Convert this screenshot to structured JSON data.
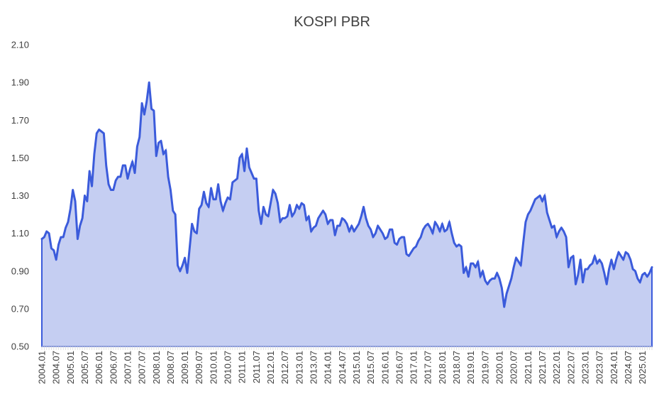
{
  "chart_data": {
    "type": "area",
    "title": "KOSPI PBR",
    "xlabel": "",
    "ylabel": "",
    "ylim": [
      0.5,
      2.1
    ],
    "y_ticks": [
      "0.50",
      "0.70",
      "0.90",
      "1.10",
      "1.30",
      "1.50",
      "1.70",
      "1.90",
      "2.10"
    ],
    "x_ticks": [
      "2004.01",
      "2004.07",
      "2005.01",
      "2005.07",
      "2006.01",
      "2006.07",
      "2007.01",
      "2007.07",
      "2008.01",
      "2008.07",
      "2009.01",
      "2009.07",
      "2010.01",
      "2010.07",
      "2011.01",
      "2011.07",
      "2012.01",
      "2012.07",
      "2013.01",
      "2013.07",
      "2014.01",
      "2014.07",
      "2015.01",
      "2015.07",
      "2016.01",
      "2016.07",
      "2017.01",
      "2017.07",
      "2018.01",
      "2018.07",
      "2019.01",
      "2019.07",
      "2020.01",
      "2020.07",
      "2021.01",
      "2021.07",
      "2022.01",
      "2022.07",
      "2023.01",
      "2023.07",
      "2024.01",
      "2024.07",
      "2025.01"
    ],
    "grid": false,
    "legend": "none",
    "colors": {
      "line": "#3B5BDB",
      "fill": "#C5CEF2",
      "axis": "#D9D9D9"
    },
    "series": [
      {
        "x_start": "2004.01",
        "interval": "month",
        "values": [
          1.07,
          1.08,
          1.11,
          1.1,
          1.02,
          1.01,
          0.96,
          1.04,
          1.08,
          1.08,
          1.13,
          1.16,
          1.23,
          1.33,
          1.27,
          1.07,
          1.14,
          1.18,
          1.3,
          1.27,
          1.43,
          1.35,
          1.52,
          1.63,
          1.65,
          1.64,
          1.63,
          1.46,
          1.36,
          1.33,
          1.33,
          1.38,
          1.4,
          1.4,
          1.46,
          1.46,
          1.39,
          1.44,
          1.48,
          1.42,
          1.56,
          1.61,
          1.79,
          1.73,
          1.8,
          1.9,
          1.76,
          1.75,
          1.51,
          1.58,
          1.59,
          1.52,
          1.54,
          1.4,
          1.33,
          1.22,
          1.2,
          0.93,
          0.9,
          0.93,
          0.97,
          0.89,
          1.02,
          1.15,
          1.11,
          1.1,
          1.23,
          1.25,
          1.32,
          1.26,
          1.24,
          1.34,
          1.28,
          1.28,
          1.36,
          1.27,
          1.22,
          1.26,
          1.29,
          1.28,
          1.37,
          1.38,
          1.39,
          1.5,
          1.52,
          1.43,
          1.55,
          1.45,
          1.42,
          1.39,
          1.39,
          1.22,
          1.15,
          1.24,
          1.2,
          1.19,
          1.26,
          1.33,
          1.31,
          1.26,
          1.16,
          1.18,
          1.18,
          1.19,
          1.25,
          1.19,
          1.21,
          1.25,
          1.23,
          1.26,
          1.25,
          1.17,
          1.19,
          1.11,
          1.13,
          1.14,
          1.18,
          1.2,
          1.22,
          1.2,
          1.15,
          1.17,
          1.17,
          1.09,
          1.14,
          1.14,
          1.18,
          1.17,
          1.15,
          1.11,
          1.14,
          1.11,
          1.13,
          1.15,
          1.19,
          1.24,
          1.18,
          1.14,
          1.12,
          1.08,
          1.1,
          1.14,
          1.12,
          1.1,
          1.07,
          1.08,
          1.12,
          1.12,
          1.05,
          1.04,
          1.07,
          1.08,
          1.08,
          0.99,
          0.98,
          1.0,
          1.02,
          1.03,
          1.06,
          1.08,
          1.12,
          1.14,
          1.15,
          1.13,
          1.1,
          1.16,
          1.14,
          1.11,
          1.15,
          1.11,
          1.12,
          1.16,
          1.1,
          1.05,
          1.03,
          1.04,
          1.03,
          0.89,
          0.92,
          0.87,
          0.94,
          0.94,
          0.92,
          0.95,
          0.87,
          0.9,
          0.85,
          0.83,
          0.85,
          0.86,
          0.86,
          0.89,
          0.86,
          0.81,
          0.71,
          0.78,
          0.82,
          0.86,
          0.92,
          0.97,
          0.95,
          0.93,
          1.05,
          1.16,
          1.2,
          1.22,
          1.25,
          1.28,
          1.29,
          1.3,
          1.27,
          1.3,
          1.21,
          1.17,
          1.13,
          1.14,
          1.08,
          1.11,
          1.13,
          1.11,
          1.08,
          0.92,
          0.97,
          0.98,
          0.83,
          0.88,
          0.96,
          0.84,
          0.91,
          0.91,
          0.93,
          0.94,
          0.98,
          0.94,
          0.96,
          0.94,
          0.89,
          0.83,
          0.91,
          0.96,
          0.91,
          0.96,
          1.0,
          0.98,
          0.96,
          1.0,
          0.99,
          0.96,
          0.91,
          0.9,
          0.86,
          0.84,
          0.88,
          0.89,
          0.87,
          0.89,
          0.92
        ]
      }
    ]
  }
}
